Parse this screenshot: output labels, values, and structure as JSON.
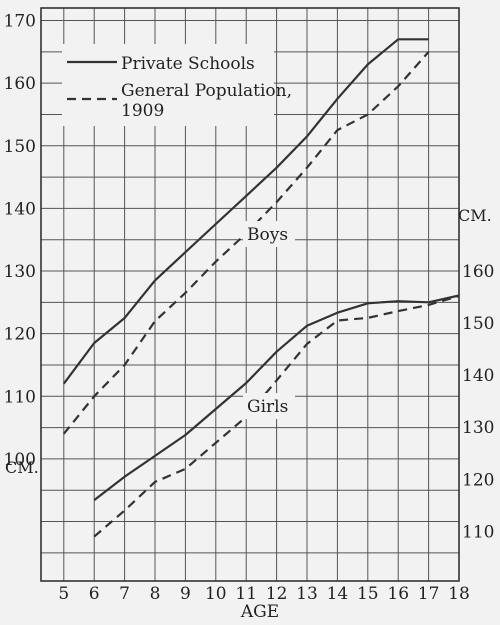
{
  "chart_data": {
    "type": "line",
    "x": [
      5,
      6,
      7,
      8,
      9,
      10,
      11,
      12,
      13,
      14,
      15,
      16,
      17,
      18
    ],
    "xlabel": "AGE",
    "left_axis": {
      "unit_label": "CM.",
      "ticks": [
        100,
        110,
        120,
        130,
        140,
        150,
        160,
        170
      ],
      "range": [
        80.5,
        172
      ]
    },
    "right_axis": {
      "unit_label": "CM.",
      "ticks": [
        110,
        120,
        130,
        140,
        150,
        160
      ],
      "range": [
        104.5,
        160
      ]
    },
    "legend": [
      {
        "label": "Private Schools",
        "style": "solid"
      },
      {
        "label": "General Population, 1909",
        "style": "dashed"
      }
    ],
    "groups": [
      {
        "label": "Boys",
        "axis": "left"
      },
      {
        "label": "Girls",
        "axis": "right"
      }
    ],
    "series": [
      {
        "group": "Boys",
        "style": "solid",
        "axis": "left",
        "x": [
          5,
          6,
          7,
          8,
          9,
          10,
          11,
          12,
          13,
          14,
          15,
          16,
          17
        ],
        "y": [
          112,
          118.5,
          122.5,
          128.5,
          133,
          137.5,
          142,
          146.5,
          151.5,
          157.5,
          163,
          167,
          167
        ]
      },
      {
        "group": "Boys",
        "style": "dashed",
        "axis": "left",
        "x": [
          5,
          6,
          7,
          8,
          9,
          10,
          11,
          12,
          13,
          14,
          15,
          16,
          17
        ],
        "y": [
          104,
          110,
          115,
          122,
          126.5,
          131.5,
          136,
          141,
          146.5,
          152.5,
          155,
          159.5,
          165
        ]
      },
      {
        "group": "Girls",
        "style": "solid",
        "axis": "right",
        "x": [
          6,
          7,
          8,
          9,
          10,
          11,
          12,
          13,
          14,
          15,
          16,
          17,
          18
        ],
        "y": [
          116,
          120.5,
          124.5,
          128.5,
          133.5,
          138.5,
          144.5,
          149.5,
          152,
          153.8,
          154.2,
          154,
          155.3
        ]
      },
      {
        "group": "Girls",
        "style": "dashed",
        "axis": "right",
        "x": [
          6,
          7,
          8,
          9,
          10,
          11,
          12,
          13,
          14,
          15,
          16,
          17,
          18
        ],
        "y": [
          109,
          114,
          119.5,
          122,
          127,
          132,
          139,
          146,
          150.5,
          151,
          152.3,
          153.5,
          155.2
        ]
      }
    ]
  }
}
